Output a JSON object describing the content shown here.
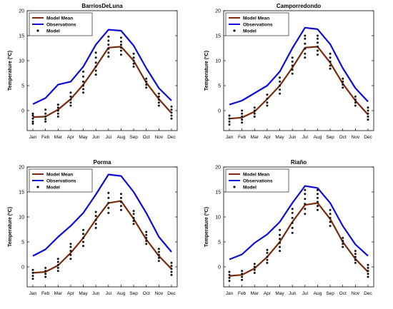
{
  "colors": {
    "model_mean": "#7a2a0c",
    "observations": "#0c0cd6",
    "model_points": "#111111",
    "axes": "#000000"
  },
  "chart_data": [
    {
      "type": "line",
      "title": "BarriosDeLuna",
      "ylabel": "Temperature (ºC)",
      "xlabel": "",
      "categories": [
        "Jan",
        "Feb",
        "Mar",
        "Apr",
        "May",
        "Jun",
        "Jul",
        "Aug",
        "Sep",
        "Oct",
        "Nov",
        "Dec"
      ],
      "ylim": [
        -4,
        20
      ],
      "yticks": [
        0,
        5,
        10,
        15,
        20
      ],
      "legend_position": "top-left",
      "series": [
        {
          "name": "Model Mean",
          "values": [
            -1.3,
            -1.2,
            0.2,
            2.3,
            5.2,
            8.8,
            12.6,
            12.8,
            10.0,
            5.6,
            2.3,
            -0.5
          ]
        },
        {
          "name": "Observations",
          "values": [
            1.3,
            2.5,
            5.2,
            5.8,
            8.8,
            13.2,
            16.2,
            16.0,
            13.0,
            8.5,
            4.5,
            2.0
          ]
        }
      ],
      "model_points": {
        "name": "Model",
        "values": [
          [
            -2.6,
            -2.2,
            -1.6,
            -1.0,
            -0.6
          ],
          [
            -2.2,
            -1.7,
            -1.2,
            -0.6,
            0.2
          ],
          [
            -1.2,
            -0.6,
            0.0,
            0.6,
            1.2
          ],
          [
            1.0,
            1.6,
            2.2,
            2.8,
            3.6
          ],
          [
            3.6,
            4.3,
            5.0,
            5.8,
            6.8,
            7.8
          ],
          [
            7.2,
            8.0,
            8.8,
            9.6,
            10.6,
            11.6
          ],
          [
            10.8,
            11.6,
            12.4,
            13.2,
            14.0,
            14.8
          ],
          [
            11.2,
            12.0,
            12.6,
            13.2,
            13.8,
            14.6
          ],
          [
            8.8,
            9.4,
            10.0,
            10.6,
            11.4
          ],
          [
            4.6,
            5.2,
            5.8,
            6.4
          ],
          [
            1.0,
            1.6,
            2.2,
            2.8,
            3.4
          ],
          [
            -1.6,
            -1.0,
            -0.4,
            0.2,
            0.8
          ]
        ]
      }
    },
    {
      "type": "line",
      "title": "Camporredondo",
      "ylabel": "Temperature (ºC)",
      "xlabel": "",
      "categories": [
        "Jan",
        "Feb",
        "Mar",
        "Apr",
        "May",
        "Jun",
        "Jul",
        "Aug",
        "Sep",
        "Oct",
        "Nov",
        "Dec"
      ],
      "ylim": [
        -4,
        20
      ],
      "yticks": [
        0,
        5,
        10,
        15,
        20
      ],
      "legend_position": "top-left",
      "series": [
        {
          "name": "Model Mean",
          "values": [
            -1.6,
            -1.4,
            -0.2,
            2.3,
            5.0,
            8.6,
            12.6,
            12.8,
            9.6,
            5.4,
            2.0,
            -0.8
          ]
        },
        {
          "name": "Observations",
          "values": [
            1.2,
            2.0,
            3.5,
            5.0,
            7.8,
            12.5,
            16.6,
            16.3,
            13.3,
            8.5,
            4.5,
            1.8
          ]
        }
      ],
      "model_points": {
        "name": "Model",
        "values": [
          [
            -2.8,
            -2.2,
            -1.6,
            -1.0
          ],
          [
            -2.4,
            -1.8,
            -1.2,
            -0.6,
            0.0
          ],
          [
            -1.2,
            -0.6,
            0.0,
            0.6
          ],
          [
            1.0,
            1.6,
            2.4,
            3.2
          ],
          [
            3.4,
            4.2,
            5.0,
            5.8,
            6.6
          ],
          [
            7.4,
            8.2,
            9.0,
            9.8,
            10.6
          ],
          [
            10.6,
            11.4,
            12.4,
            13.4,
            14.4,
            15.0
          ],
          [
            11.2,
            12.0,
            12.8,
            13.6,
            14.4,
            15.0
          ],
          [
            8.4,
            9.0,
            9.8,
            10.6,
            11.4
          ],
          [
            4.6,
            5.2,
            5.8,
            6.4
          ],
          [
            1.0,
            1.6,
            2.2,
            2.8
          ],
          [
            -1.8,
            -1.2,
            -0.6,
            0.0,
            0.6
          ]
        ]
      }
    },
    {
      "type": "line",
      "title": "Porma",
      "ylabel": "Temperature (ºC)",
      "xlabel": "",
      "categories": [
        "Jan",
        "Feb",
        "Mar",
        "Apr",
        "May",
        "Jun",
        "Jul",
        "Aug",
        "Sep",
        "Oct",
        "Nov",
        "Dec"
      ],
      "ylim": [
        -4,
        20
      ],
      "yticks": [
        0,
        5,
        10,
        15,
        20
      ],
      "legend_position": "top-left",
      "series": [
        {
          "name": "Model Mean",
          "values": [
            -1.2,
            -1.0,
            0.3,
            2.8,
            5.8,
            9.5,
            12.8,
            13.2,
            9.6,
            5.5,
            2.2,
            -0.4
          ]
        },
        {
          "name": "Observations",
          "values": [
            2.2,
            3.5,
            6.0,
            8.2,
            10.8,
            14.5,
            18.5,
            18.2,
            15.0,
            10.8,
            6.0,
            3.0
          ]
        }
      ],
      "model_points": {
        "name": "Model",
        "values": [
          [
            -2.4,
            -1.8,
            -1.2,
            -0.6
          ],
          [
            -2.0,
            -1.4,
            -0.8,
            -0.2
          ],
          [
            -0.8,
            -0.2,
            0.4,
            1.0,
            1.6
          ],
          [
            1.6,
            2.4,
            3.2,
            4.0,
            4.6
          ],
          [
            4.2,
            5.0,
            5.8,
            6.6,
            7.4
          ],
          [
            7.8,
            8.6,
            9.4,
            10.2,
            11.0
          ],
          [
            10.8,
            11.8,
            12.8,
            13.8,
            14.8
          ],
          [
            11.4,
            12.2,
            13.0,
            13.8,
            14.6
          ],
          [
            8.6,
            9.2,
            9.8,
            10.6,
            11.2
          ],
          [
            4.6,
            5.2,
            5.8,
            6.4,
            7.0
          ],
          [
            1.2,
            1.8,
            2.4,
            3.0,
            3.6
          ],
          [
            -1.6,
            -1.0,
            -0.4,
            0.2,
            0.8
          ]
        ]
      }
    },
    {
      "type": "line",
      "title": "Riaño",
      "ylabel": "Temperature (ºC)",
      "xlabel": "",
      "categories": [
        "Jan",
        "Feb",
        "Mar",
        "Apr",
        "May",
        "Jun",
        "Jul",
        "Aug",
        "Sep",
        "Oct",
        "Nov",
        "Dec"
      ],
      "ylim": [
        -4,
        20
      ],
      "yticks": [
        0,
        5,
        10,
        15,
        20
      ],
      "legend_position": "top-left",
      "series": [
        {
          "name": "Model Mean",
          "values": [
            -1.8,
            -1.6,
            -0.3,
            2.0,
            5.0,
            9.0,
            12.4,
            12.8,
            9.6,
            5.0,
            1.6,
            -1.0
          ]
        },
        {
          "name": "Observations",
          "values": [
            1.5,
            2.5,
            4.8,
            6.5,
            9.0,
            12.8,
            16.2,
            15.8,
            12.8,
            8.2,
            4.5,
            2.2
          ]
        }
      ],
      "model_points": {
        "name": "Model",
        "values": [
          [
            -2.8,
            -2.2,
            -1.6,
            -1.0
          ],
          [
            -2.6,
            -2.0,
            -1.4,
            -0.8
          ],
          [
            -1.2,
            -0.6,
            0.0,
            0.6
          ],
          [
            0.8,
            1.4,
            2.0,
            2.8,
            3.4
          ],
          [
            3.2,
            4.0,
            4.8,
            5.6,
            6.4,
            7.4
          ],
          [
            6.8,
            7.8,
            8.8,
            9.8,
            10.8,
            11.6
          ],
          [
            10.6,
            11.6,
            12.6,
            13.6,
            14.6,
            15.4
          ],
          [
            11.4,
            12.2,
            13.0,
            13.8,
            14.6,
            15.4
          ],
          [
            8.2,
            9.0,
            9.8,
            10.6,
            11.4
          ],
          [
            4.0,
            4.6,
            5.2,
            5.8
          ],
          [
            0.8,
            1.4,
            2.0,
            2.6,
            3.2
          ],
          [
            -2.0,
            -1.4,
            -0.8,
            -0.2,
            0.4
          ]
        ]
      }
    }
  ]
}
